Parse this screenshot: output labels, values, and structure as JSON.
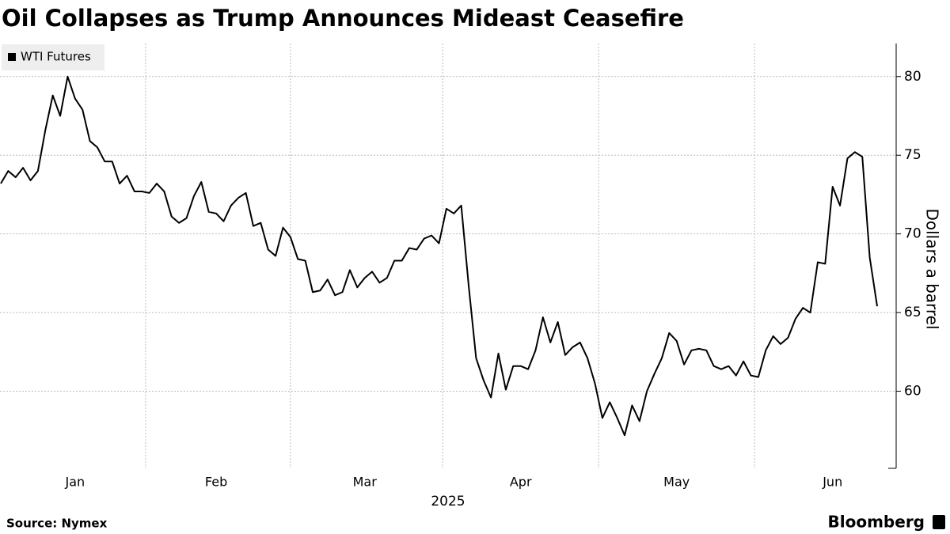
{
  "chart_data": {
    "type": "line",
    "title": "Oil Collapses as Trump Announces Mideast Ceasefire",
    "categories": [
      null,
      null,
      null,
      null,
      null,
      null,
      null,
      null,
      null,
      null,
      "Jan",
      null,
      null,
      null,
      null,
      null,
      null,
      null,
      null,
      null,
      null,
      null,
      null,
      null,
      null,
      null,
      null,
      null,
      null,
      "Feb",
      null,
      null,
      null,
      null,
      null,
      null,
      null,
      null,
      null,
      null,
      null,
      null,
      null,
      null,
      null,
      null,
      null,
      null,
      null,
      "Mar",
      null,
      null,
      null,
      null,
      null,
      null,
      null,
      null,
      null,
      null,
      null,
      null,
      null,
      null,
      null,
      null,
      null,
      null,
      null,
      null,
      "Apr",
      null,
      null,
      null,
      null,
      null,
      null,
      null,
      null,
      null,
      null,
      null,
      null,
      null,
      null,
      null,
      null,
      null,
      null,
      null,
      null,
      "May",
      null,
      null,
      null,
      null,
      null,
      null,
      null,
      null,
      null,
      null,
      null,
      null,
      null,
      null,
      null,
      null,
      null,
      null,
      null,
      null,
      "Jun",
      null,
      null,
      null,
      null,
      null,
      null
    ],
    "xlabel": "2025",
    "ylabel": "Dollars a barrel",
    "series": [
      {
        "name": "WTI Futures",
        "color": "#000000",
        "values": [
          73.2,
          74.0,
          73.6,
          74.2,
          73.4,
          74.0,
          76.6,
          78.8,
          77.5,
          80.0,
          78.6,
          77.9,
          75.9,
          75.5,
          74.6,
          74.6,
          73.2,
          73.7,
          72.7,
          72.7,
          72.6,
          73.2,
          72.7,
          71.1,
          70.7,
          71.0,
          72.4,
          73.3,
          71.4,
          71.3,
          70.8,
          71.8,
          72.3,
          72.6,
          70.5,
          70.7,
          69.0,
          68.6,
          70.4,
          69.8,
          68.4,
          68.3,
          66.3,
          66.4,
          67.1,
          66.1,
          66.3,
          67.7,
          66.6,
          67.2,
          67.6,
          66.9,
          67.2,
          68.3,
          68.3,
          69.1,
          69.0,
          69.7,
          69.9,
          69.4,
          71.6,
          71.3,
          71.8,
          66.7,
          62.1,
          60.7,
          59.6,
          62.4,
          60.1,
          61.6,
          61.6,
          61.4,
          62.6,
          64.7,
          63.1,
          64.4,
          62.3,
          62.8,
          63.1,
          62.1,
          60.5,
          58.3,
          59.3,
          58.3,
          57.2,
          59.1,
          58.1,
          60.0,
          61.1,
          62.1,
          63.7,
          63.2,
          61.7,
          62.6,
          62.7,
          62.6,
          61.6,
          61.4,
          61.6,
          61.0,
          61.9,
          61.0,
          60.9,
          62.6,
          63.5,
          63.0,
          63.4,
          64.6,
          65.3,
          65.0,
          68.2,
          68.1,
          73.0,
          71.8,
          74.8,
          75.2,
          74.9,
          68.5,
          65.4
        ]
      }
    ],
    "ylim": [
      55.1,
      82.1
    ],
    "yticks": [
      60,
      65,
      70,
      75,
      80
    ],
    "grid": true,
    "y_axis_side": "right",
    "legend": "upper left",
    "source": "Source: Nymex",
    "brand": "Bloomberg"
  }
}
